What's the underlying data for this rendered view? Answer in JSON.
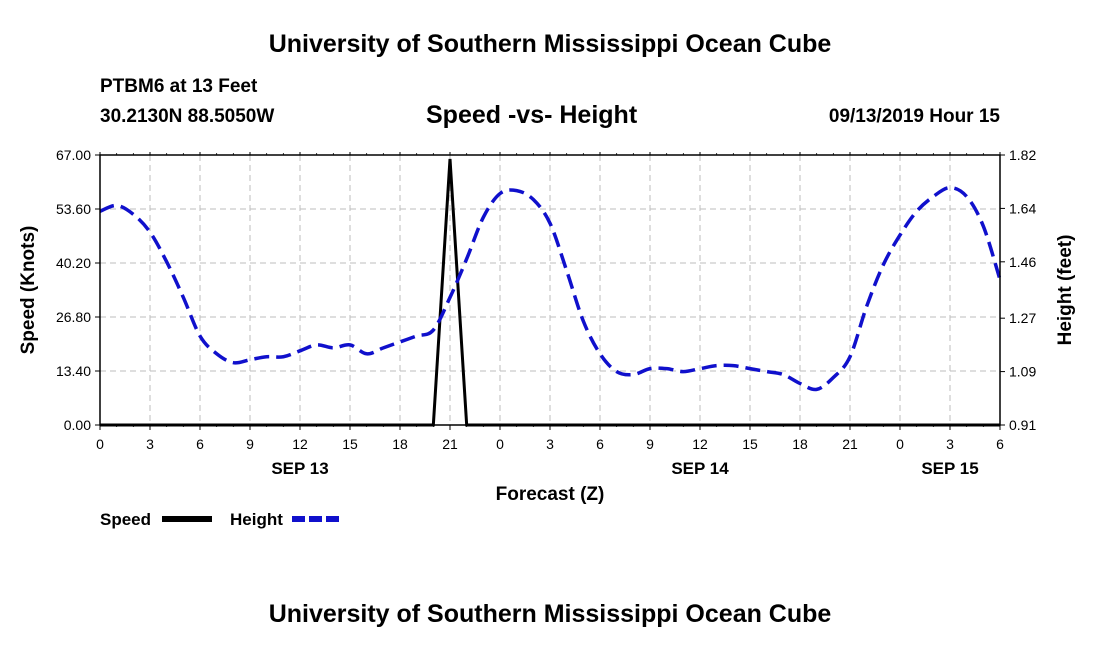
{
  "page": {
    "top_title": "University of Southern Mississippi Ocean Cube",
    "bottom_title": "University of Southern Mississippi Ocean Cube",
    "station": "PTBM6 at 13 Feet",
    "coordinates": "30.2130N 88.5050W",
    "chart_title": "Speed -vs- Height",
    "datetime": "09/13/2019 Hour 15"
  },
  "colors": {
    "speed": "#000000",
    "height": "#1010cc",
    "grid": "#bdbdbd"
  },
  "chart_data": {
    "type": "line",
    "title": "Speed -vs- Height",
    "xlabel": "Forecast (Z)",
    "ylabel": "Speed (Knots)",
    "y2label": "Height (feet)",
    "xlim": [
      0,
      54
    ],
    "ylim": [
      0,
      67
    ],
    "y2lim": [
      0.91,
      1.82
    ],
    "x_ticks": [
      0,
      3,
      6,
      9,
      12,
      15,
      18,
      21,
      24,
      27,
      30,
      33,
      36,
      39,
      42,
      45,
      48,
      51,
      54
    ],
    "x_tick_labels": [
      "0",
      "3",
      "6",
      "9",
      "12",
      "15",
      "18",
      "21",
      "0",
      "3",
      "6",
      "9",
      "12",
      "15",
      "18",
      "21",
      "0",
      "3",
      "6"
    ],
    "y_ticks": [
      0,
      13.4,
      26.8,
      40.2,
      53.6,
      67
    ],
    "y_tick_labels": [
      "0.00",
      "13.40",
      "26.80",
      "40.20",
      "53.60",
      "67.00"
    ],
    "y2_ticks": [
      0.91,
      1.09,
      1.27,
      1.46,
      1.64,
      1.82
    ],
    "y2_tick_labels": [
      "0.91",
      "1.09",
      "1.27",
      "1.46",
      "1.64",
      "1.82"
    ],
    "date_labels": [
      {
        "x": 12,
        "label": "SEP 13"
      },
      {
        "x": 36,
        "label": "SEP 14"
      },
      {
        "x": 51,
        "label": "SEP 15"
      }
    ],
    "grid": true,
    "legend_position": "bottom-left",
    "series": [
      {
        "name": "Speed",
        "axis": "left",
        "style": "solid",
        "x": [
          0,
          20,
          21,
          22,
          54
        ],
        "y": [
          0,
          0,
          66,
          0,
          0
        ]
      },
      {
        "name": "Height",
        "axis": "right",
        "style": "dashed",
        "x": [
          0,
          1,
          2,
          3,
          4,
          5,
          6,
          7,
          8,
          9,
          10,
          11,
          12,
          13,
          14,
          15,
          16,
          17,
          18,
          19,
          20,
          21,
          22,
          23,
          24,
          25,
          26,
          27,
          28,
          29,
          30,
          31,
          32,
          33,
          34,
          35,
          36,
          37,
          38,
          39,
          40,
          41,
          42,
          43,
          44,
          45,
          46,
          47,
          48,
          49,
          50,
          51,
          52,
          53,
          54
        ],
        "y": [
          1.63,
          1.65,
          1.62,
          1.56,
          1.46,
          1.34,
          1.21,
          1.15,
          1.12,
          1.13,
          1.14,
          1.14,
          1.16,
          1.18,
          1.17,
          1.18,
          1.15,
          1.17,
          1.19,
          1.21,
          1.23,
          1.34,
          1.47,
          1.61,
          1.69,
          1.7,
          1.67,
          1.59,
          1.43,
          1.26,
          1.15,
          1.09,
          1.08,
          1.1,
          1.1,
          1.09,
          1.1,
          1.11,
          1.11,
          1.1,
          1.09,
          1.08,
          1.05,
          1.03,
          1.07,
          1.14,
          1.31,
          1.45,
          1.55,
          1.63,
          1.68,
          1.71,
          1.68,
          1.58,
          1.4
        ]
      }
    ]
  }
}
